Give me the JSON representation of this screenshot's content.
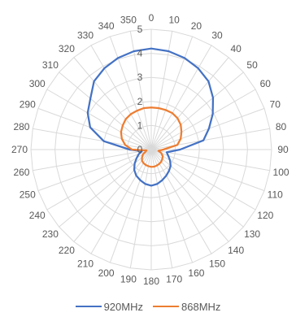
{
  "chart_data": {
    "type": "radar",
    "angle_unit": "degrees",
    "angles": [
      0,
      10,
      20,
      30,
      40,
      50,
      60,
      70,
      80,
      90,
      100,
      110,
      120,
      130,
      140,
      150,
      160,
      170,
      180,
      190,
      200,
      210,
      220,
      230,
      240,
      250,
      260,
      270,
      280,
      290,
      300,
      310,
      320,
      330,
      340,
      350
    ],
    "angle_tick_labels": [
      "0",
      "10",
      "20",
      "30",
      "40",
      "50",
      "60",
      "70",
      "80",
      "90",
      "100",
      "110",
      "120",
      "130",
      "140",
      "150",
      "160",
      "170",
      "180",
      "190",
      "200",
      "210",
      "220",
      "230",
      "240",
      "250",
      "260",
      "270",
      "280",
      "290",
      "300",
      "310",
      "320",
      "330",
      "340",
      "350"
    ],
    "radial_ticks": [
      0,
      1,
      2,
      3,
      4,
      5
    ],
    "radial_tick_labels": [
      "0",
      "1",
      "2",
      "3",
      "4",
      "5"
    ],
    "rlim": [
      0,
      5
    ],
    "grid": true,
    "legend_position": "bottom",
    "series": [
      {
        "name": "920MHz",
        "color": "#4472C4",
        "values": [
          4.2,
          4.15,
          4.05,
          3.9,
          3.7,
          3.35,
          2.95,
          2.55,
          2.2,
          1.2,
          0.65,
          0.75,
          0.9,
          1.05,
          1.15,
          1.25,
          1.35,
          1.45,
          1.5,
          1.45,
          1.35,
          1.25,
          1.1,
          0.9,
          0.7,
          0.55,
          0.4,
          0.9,
          2.0,
          2.7,
          3.05,
          3.3,
          3.7,
          3.9,
          4.05,
          4.15
        ]
      },
      {
        "name": "868MHz",
        "color": "#ED7D31",
        "values": [
          1.75,
          1.75,
          1.75,
          1.75,
          1.7,
          1.6,
          1.45,
          1.3,
          1.1,
          0.5,
          0.3,
          0.45,
          0.55,
          0.6,
          0.65,
          0.68,
          0.7,
          0.72,
          0.72,
          0.7,
          0.68,
          0.65,
          0.6,
          0.5,
          0.4,
          0.25,
          0.2,
          0.8,
          1.1,
          1.3,
          1.45,
          1.55,
          1.65,
          1.7,
          1.72,
          1.75
        ]
      }
    ]
  }
}
